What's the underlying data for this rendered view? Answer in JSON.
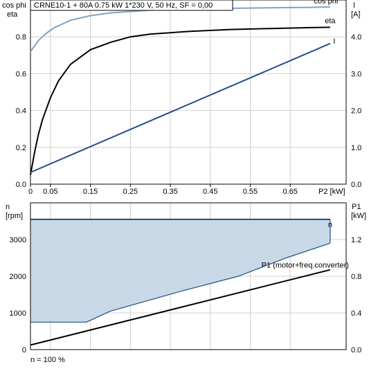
{
  "chart_data": [
    {
      "type": "line",
      "panel": "top",
      "title": "CRNE10-1 + 80A   0.75 kW   1*230 V, 50 Hz, SF = 0,00",
      "xlabel": "P2 [kW]",
      "y_left_label": [
        "cos phi",
        "eta"
      ],
      "y_right_label": [
        "I",
        "[A]"
      ],
      "xlim": [
        0,
        0.79
      ],
      "ylim_left": [
        0,
        1
      ],
      "ylim_right": [
        0,
        5
      ],
      "x_ticks": [
        0,
        0.05,
        0.15,
        0.25,
        0.35,
        0.45,
        0.55,
        0.65
      ],
      "x_tick_labels": [
        "0",
        "0.05",
        "0.15",
        "0.25",
        "0.35",
        "0.45",
        "0.55",
        "0.65"
      ],
      "y_left_ticks": [
        0,
        0.2,
        0.4,
        0.6,
        0.8
      ],
      "y_left_tick_labels": [
        "0.0",
        "0.2",
        "0.4",
        "0.6",
        "0.8"
      ],
      "y_right_ticks": [
        0,
        1,
        2,
        3,
        4
      ],
      "y_right_tick_labels": [
        "0.0",
        "1.0",
        "2.0",
        "3.0",
        "4.0"
      ],
      "grid": true,
      "series": [
        {
          "name": "cos phi",
          "axis": "left",
          "color": "#7ea3c4",
          "x": [
            0,
            0.02,
            0.04,
            0.06,
            0.08,
            0.1,
            0.15,
            0.2,
            0.3,
            0.4,
            0.5,
            0.6,
            0.7,
            0.75
          ],
          "y": [
            0.72,
            0.78,
            0.82,
            0.85,
            0.87,
            0.89,
            0.915,
            0.93,
            0.945,
            0.95,
            0.955,
            0.958,
            0.96,
            0.962
          ]
        },
        {
          "name": "eta",
          "axis": "left",
          "color": "#000000",
          "x": [
            0,
            0.01,
            0.02,
            0.03,
            0.05,
            0.07,
            0.1,
            0.15,
            0.2,
            0.25,
            0.3,
            0.4,
            0.5,
            0.6,
            0.7,
            0.75
          ],
          "y": [
            0.05,
            0.17,
            0.27,
            0.35,
            0.47,
            0.56,
            0.65,
            0.73,
            0.77,
            0.8,
            0.815,
            0.83,
            0.84,
            0.845,
            0.85,
            0.852
          ]
        },
        {
          "name": "I",
          "axis": "right",
          "color": "#1f4e87",
          "x": [
            0,
            0.75
          ],
          "y": [
            0.32,
            3.82
          ]
        }
      ]
    },
    {
      "type": "area",
      "panel": "bottom",
      "xlabel": "",
      "y_left_label": [
        "n",
        "[rpm]"
      ],
      "y_right_label": [
        "P1",
        "[kW]"
      ],
      "xlim": [
        0,
        0.79
      ],
      "ylim_left": [
        0,
        4000
      ],
      "ylim_right": [
        0,
        1.6
      ],
      "y_left_ticks": [
        0,
        1000,
        2000,
        3000
      ],
      "y_left_tick_labels": [
        "0",
        "1000",
        "2000",
        "3000"
      ],
      "y_right_ticks": [
        0,
        0.4,
        0.8,
        1.2
      ],
      "y_right_tick_labels": [
        "0.0",
        "0.4",
        "0.8",
        "1.2"
      ],
      "grid": true,
      "footnote": "n = 100 %",
      "series": [
        {
          "name": "n",
          "axis": "left",
          "color": "#1f4e87",
          "x": [
            0,
            0.75
          ],
          "y": [
            3550,
            3550
          ]
        },
        {
          "name": "",
          "axis": "left",
          "color": "#1f4e87",
          "fill": "#c9d8e6",
          "x": [
            0,
            0.14,
            0.2,
            0.38,
            0.52,
            0.64,
            0.75
          ],
          "y": [
            750,
            750,
            1050,
            1600,
            2000,
            2500,
            2900
          ]
        },
        {
          "name": "P1 (motor+freq.converter)",
          "axis": "right",
          "color": "#000000",
          "x": [
            0,
            0.75
          ],
          "y": [
            0.05,
            0.87
          ]
        }
      ]
    }
  ]
}
